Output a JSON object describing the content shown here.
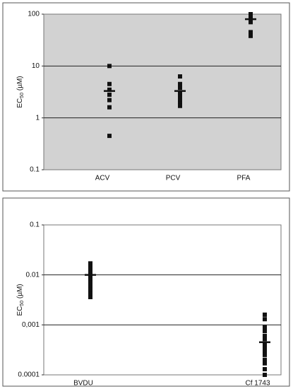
{
  "chart_data": [
    {
      "type": "scatter",
      "yscale": "log",
      "plot_color": "#d2d2d2",
      "marker_color": "#111",
      "ylabel": [
        "EC",
        "50",
        " (µM)"
      ],
      "categories": [
        "ACV",
        "PCV",
        "PFA"
      ],
      "values": [
        [
          10,
          4.5,
          3.5,
          2.8,
          2.2,
          1.6,
          0.45
        ],
        [
          6.3,
          4.5,
          3.8,
          3,
          2.6,
          2.2,
          1.9,
          1.7
        ],
        [
          100,
          95,
          80,
          75,
          70,
          45,
          40,
          38
        ]
      ],
      "means": [
        3.3,
        3.3,
        80
      ],
      "ylim": [
        0.1,
        100
      ],
      "yticks": [
        0.1,
        1,
        10,
        100
      ],
      "grid": true
    },
    {
      "type": "scatter",
      "yscale": "log",
      "plot_color": "#ffffff",
      "marker_color": "#111",
      "ylabel": [
        "EC",
        "50",
        " (µM)"
      ],
      "categories": [
        "BVDU",
        "Cf 1743"
      ],
      "values": [
        [
          0.017,
          0.015,
          0.013,
          0.012,
          0.011,
          0.0095,
          0.009,
          0.008,
          0.007,
          0.006,
          0.005,
          0.0042,
          0.0036
        ],
        [
          0.0016,
          0.0013,
          0.0009,
          0.00075,
          0.0006,
          0.00052,
          0.0004,
          0.00035,
          0.0003,
          0.00025,
          0.0002,
          0.00017,
          0.00013,
          0.0001
        ]
      ],
      "means": [
        0.01,
        0.00045
      ],
      "ylim": [
        0.0001,
        0.1
      ],
      "yticks": [
        0.0001,
        {
          "value": 0.001,
          "label": "0,001"
        },
        0.01,
        0.1
      ],
      "grid": true
    }
  ]
}
